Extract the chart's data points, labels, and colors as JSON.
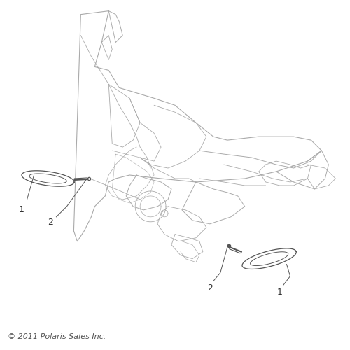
{
  "background_color": "#ffffff",
  "line_color": "#aaaaaa",
  "dark_line_color": "#555555",
  "label_color": "#333333",
  "copyright_text": "© 2011 Polaris Sales Inc.",
  "copyright_fontsize": 8,
  "label_fontsize": 9,
  "fig_width": 5.0,
  "fig_height": 5.0,
  "dpi": 100
}
